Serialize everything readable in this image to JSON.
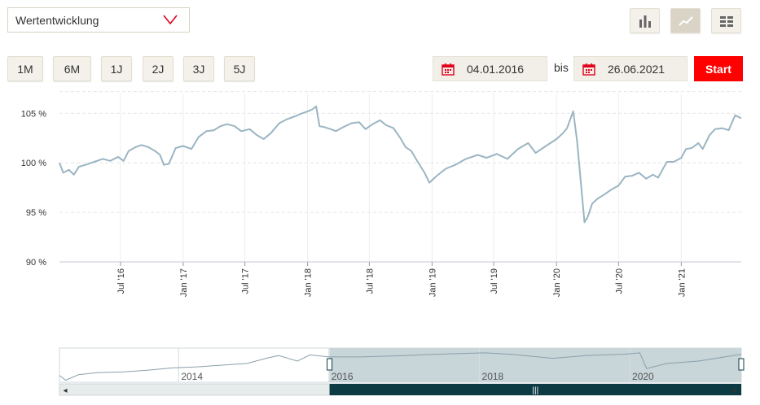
{
  "metric_select": {
    "value": "Wertentwicklung"
  },
  "view_buttons": [
    "bar-chart-icon",
    "line-chart-icon",
    "table-icon"
  ],
  "ranges": [
    "1M",
    "6M",
    "1J",
    "2J",
    "3J",
    "5J"
  ],
  "date_from": "04.01.2016",
  "date_sep": "bis",
  "date_to": "26.06.2021",
  "start_label": "Start",
  "colors": {
    "accent": "#ff0000",
    "line": "#9bb5c2",
    "grid": "#e6e6e6",
    "nav_fill": "#c8d5d9",
    "nav_bar": "#0d3b44"
  },
  "chart_data": {
    "type": "line",
    "ylim": [
      90,
      107
    ],
    "yticks": [
      90,
      95,
      100,
      105
    ],
    "ytick_labels": [
      "90 %",
      "95 %",
      "100 %",
      "105 %"
    ],
    "xticks": [
      {
        "label": "Jul '16",
        "date": "2016-07-01"
      },
      {
        "label": "Jan '17",
        "date": "2017-01-01"
      },
      {
        "label": "Jul '17",
        "date": "2017-07-01"
      },
      {
        "label": "Jan '18",
        "date": "2018-01-01"
      },
      {
        "label": "Jul '18",
        "date": "2018-07-01"
      },
      {
        "label": "Jan '19",
        "date": "2019-01-01"
      },
      {
        "label": "Jul '19",
        "date": "2019-07-01"
      },
      {
        "label": "Jan '20",
        "date": "2020-01-01"
      },
      {
        "label": "Jul '20",
        "date": "2020-07-01"
      },
      {
        "label": "Jan '21",
        "date": "2021-01-01"
      }
    ],
    "series": [
      {
        "points": [
          [
            "2016-01-04",
            100.0
          ],
          [
            "2016-01-15",
            99.0
          ],
          [
            "2016-02-01",
            99.3
          ],
          [
            "2016-02-15",
            98.8
          ],
          [
            "2016-03-01",
            99.6
          ],
          [
            "2016-03-20",
            99.8
          ],
          [
            "2016-04-15",
            100.1
          ],
          [
            "2016-05-10",
            100.4
          ],
          [
            "2016-06-01",
            100.2
          ],
          [
            "2016-06-24",
            100.6
          ],
          [
            "2016-07-10",
            100.2
          ],
          [
            "2016-07-25",
            101.2
          ],
          [
            "2016-08-15",
            101.6
          ],
          [
            "2016-09-01",
            101.8
          ],
          [
            "2016-09-20",
            101.6
          ],
          [
            "2016-10-10",
            101.2
          ],
          [
            "2016-10-25",
            100.8
          ],
          [
            "2016-11-05",
            99.8
          ],
          [
            "2016-11-20",
            99.9
          ],
          [
            "2016-12-10",
            101.5
          ],
          [
            "2017-01-01",
            101.7
          ],
          [
            "2017-01-25",
            101.4
          ],
          [
            "2017-02-15",
            102.6
          ],
          [
            "2017-03-10",
            103.2
          ],
          [
            "2017-04-01",
            103.3
          ],
          [
            "2017-04-20",
            103.7
          ],
          [
            "2017-05-10",
            103.9
          ],
          [
            "2017-06-01",
            103.7
          ],
          [
            "2017-06-20",
            103.2
          ],
          [
            "2017-07-15",
            103.4
          ],
          [
            "2017-08-05",
            102.8
          ],
          [
            "2017-08-25",
            102.4
          ],
          [
            "2017-09-15",
            103.0
          ],
          [
            "2017-10-10",
            104.0
          ],
          [
            "2017-11-01",
            104.4
          ],
          [
            "2017-11-25",
            104.7
          ],
          [
            "2017-12-15",
            105.0
          ],
          [
            "2018-01-01",
            105.2
          ],
          [
            "2018-01-15",
            105.4
          ],
          [
            "2018-01-26",
            105.7
          ],
          [
            "2018-02-05",
            103.7
          ],
          [
            "2018-02-20",
            103.6
          ],
          [
            "2018-03-10",
            103.4
          ],
          [
            "2018-03-25",
            103.2
          ],
          [
            "2018-04-15",
            103.6
          ],
          [
            "2018-05-10",
            104.0
          ],
          [
            "2018-06-01",
            104.1
          ],
          [
            "2018-06-20",
            103.4
          ],
          [
            "2018-07-10",
            103.9
          ],
          [
            "2018-08-01",
            104.3
          ],
          [
            "2018-08-20",
            103.8
          ],
          [
            "2018-09-10",
            103.5
          ],
          [
            "2018-09-30",
            102.5
          ],
          [
            "2018-10-15",
            101.6
          ],
          [
            "2018-11-01",
            101.2
          ],
          [
            "2018-11-20",
            100.1
          ],
          [
            "2018-12-10",
            99.0
          ],
          [
            "2018-12-24",
            98.0
          ],
          [
            "2019-01-15",
            98.7
          ],
          [
            "2019-02-10",
            99.4
          ],
          [
            "2019-03-10",
            99.8
          ],
          [
            "2019-04-10",
            100.4
          ],
          [
            "2019-05-15",
            100.8
          ],
          [
            "2019-06-10",
            100.5
          ],
          [
            "2019-07-10",
            100.9
          ],
          [
            "2019-08-10",
            100.4
          ],
          [
            "2019-09-10",
            101.4
          ],
          [
            "2019-10-10",
            102.0
          ],
          [
            "2019-11-01",
            101.0
          ],
          [
            "2019-12-01",
            101.7
          ],
          [
            "2020-01-01",
            102.4
          ],
          [
            "2020-01-20",
            103.0
          ],
          [
            "2020-02-01",
            103.5
          ],
          [
            "2020-02-19",
            105.2
          ],
          [
            "2020-03-01",
            102.3
          ],
          [
            "2020-03-10",
            99.0
          ],
          [
            "2020-03-23",
            94.0
          ],
          [
            "2020-04-01",
            94.5
          ],
          [
            "2020-04-15",
            95.9
          ],
          [
            "2020-05-01",
            96.4
          ],
          [
            "2020-05-20",
            96.8
          ],
          [
            "2020-06-10",
            97.3
          ],
          [
            "2020-07-01",
            97.7
          ],
          [
            "2020-07-20",
            98.6
          ],
          [
            "2020-08-10",
            98.7
          ],
          [
            "2020-08-30",
            99.0
          ],
          [
            "2020-09-20",
            98.4
          ],
          [
            "2020-10-10",
            98.8
          ],
          [
            "2020-10-25",
            98.5
          ],
          [
            "2020-11-10",
            99.5
          ],
          [
            "2020-11-20",
            100.1
          ],
          [
            "2020-12-10",
            100.1
          ],
          [
            "2021-01-01",
            100.5
          ],
          [
            "2021-01-15",
            101.4
          ],
          [
            "2021-02-01",
            101.5
          ],
          [
            "2021-02-20",
            102.0
          ],
          [
            "2021-03-05",
            101.4
          ],
          [
            "2021-03-25",
            102.8
          ],
          [
            "2021-04-10",
            103.4
          ],
          [
            "2021-05-01",
            103.5
          ],
          [
            "2021-05-20",
            103.3
          ],
          [
            "2021-06-08",
            104.8
          ],
          [
            "2021-06-26",
            104.5
          ]
        ]
      }
    ]
  },
  "navigator": {
    "year_labels": [
      "2014",
      "2016",
      "2018",
      "2020"
    ],
    "points": [
      [
        "2012-06-01",
        0.2
      ],
      [
        "2012-07-01",
        0.06
      ],
      [
        "2012-09-01",
        0.22
      ],
      [
        "2012-12-01",
        0.28
      ],
      [
        "2013-04-01",
        0.3
      ],
      [
        "2013-08-01",
        0.35
      ],
      [
        "2013-12-01",
        0.42
      ],
      [
        "2014-04-01",
        0.45
      ],
      [
        "2014-08-01",
        0.5
      ],
      [
        "2014-12-01",
        0.55
      ],
      [
        "2015-03-01",
        0.7
      ],
      [
        "2015-05-01",
        0.78
      ],
      [
        "2015-08-01",
        0.62
      ],
      [
        "2015-10-01",
        0.8
      ],
      [
        "2016-01-04",
        0.74
      ],
      [
        "2016-06-01",
        0.74
      ],
      [
        "2017-01-01",
        0.78
      ],
      [
        "2017-06-01",
        0.82
      ],
      [
        "2018-01-26",
        0.86
      ],
      [
        "2018-06-01",
        0.82
      ],
      [
        "2018-12-24",
        0.7
      ],
      [
        "2019-06-01",
        0.78
      ],
      [
        "2019-12-01",
        0.82
      ],
      [
        "2020-02-19",
        0.86
      ],
      [
        "2020-03-23",
        0.4
      ],
      [
        "2020-07-01",
        0.55
      ],
      [
        "2020-12-01",
        0.62
      ],
      [
        "2021-06-26",
        0.82
      ]
    ],
    "window": [
      "2016-01-04",
      "2021-06-26"
    ]
  }
}
